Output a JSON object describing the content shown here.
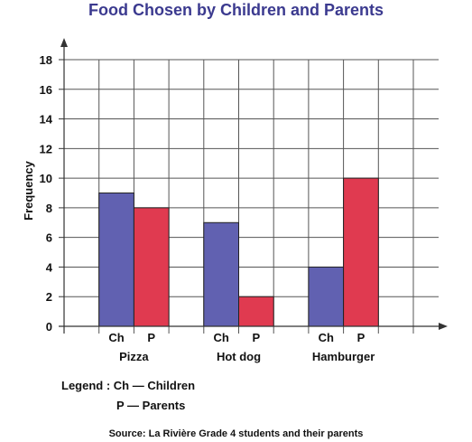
{
  "chart_data": {
    "type": "bar",
    "title": "Food Chosen by Children and Parents",
    "xlabel": "",
    "ylabel": "Frequency",
    "ylim": [
      0,
      18
    ],
    "yticks": [
      0,
      2,
      4,
      6,
      8,
      10,
      12,
      14,
      16,
      18
    ],
    "grid": true,
    "categories": [
      "Pizza",
      "Hot dog",
      "Hamburger"
    ],
    "series": [
      {
        "name": "Ch",
        "color": "#6161b1",
        "values": [
          9,
          7,
          4
        ]
      },
      {
        "name": "P",
        "color": "#e03a50",
        "values": [
          8,
          2,
          10
        ]
      }
    ]
  },
  "legend": {
    "line1": "Legend : Ch — Children",
    "line2": "P — Parents"
  },
  "source": "Source: La Rivière Grade 4 students and their parents"
}
